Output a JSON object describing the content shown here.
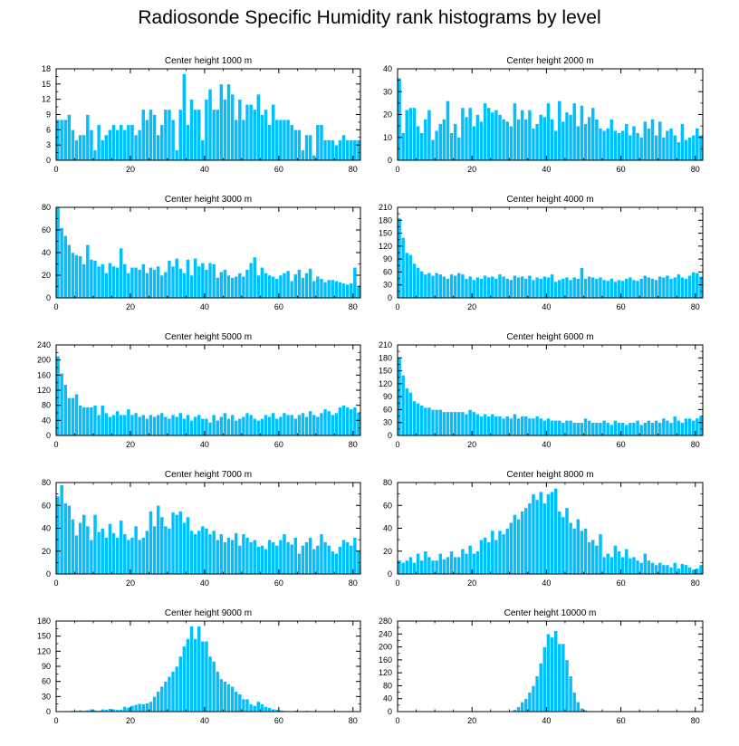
{
  "title": "Radiosonde Specific Humidity rank histograms by level",
  "colors": {
    "bar": "#00BFFF",
    "bar_edge": "#ffffff",
    "axis": "#000000"
  },
  "chart_data": [
    {
      "type": "bar",
      "title": "Center height 1000 m",
      "xlim": [
        0,
        82
      ],
      "ylim": [
        0,
        18
      ],
      "xticks": [
        0,
        20,
        40,
        60,
        80
      ],
      "yticks": [
        0,
        3,
        6,
        9,
        12,
        15,
        18
      ],
      "values": [
        8,
        8,
        8,
        9,
        6,
        4,
        5,
        5,
        9,
        6,
        2,
        7,
        4,
        5,
        6,
        7,
        6,
        7,
        6,
        7,
        7,
        5,
        6,
        10,
        8,
        10,
        9,
        5,
        7,
        10,
        10,
        8,
        2,
        10,
        17,
        7,
        12,
        10,
        10,
        4,
        12,
        14,
        10,
        10,
        15,
        12,
        15,
        13,
        8,
        12,
        8,
        11,
        11,
        10,
        13,
        9,
        10,
        7,
        11,
        8,
        8,
        8,
        8,
        7,
        6,
        6,
        2,
        5,
        5,
        1,
        7,
        7,
        4,
        4,
        4,
        3,
        4,
        5,
        4,
        4,
        4,
        4
      ]
    },
    {
      "type": "bar",
      "title": "Center height 2000 m",
      "xlim": [
        0,
        82
      ],
      "ylim": [
        0,
        40
      ],
      "xticks": [
        0,
        20,
        40,
        60,
        80
      ],
      "yticks": [
        0,
        10,
        20,
        30,
        40
      ],
      "values": [
        36,
        12,
        22,
        23,
        23,
        15,
        12,
        18,
        22,
        9,
        13,
        16,
        18,
        26,
        12,
        16,
        10,
        23,
        19,
        23,
        15,
        20,
        17,
        25,
        23,
        21,
        22,
        20,
        18,
        17,
        15,
        25,
        18,
        22,
        18,
        22,
        14,
        16,
        20,
        19,
        25,
        18,
        13,
        26,
        17,
        21,
        20,
        25,
        15,
        24,
        16,
        19,
        23,
        18,
        14,
        13,
        14,
        18,
        13,
        12,
        13,
        16,
        11,
        15,
        12,
        10,
        17,
        14,
        18,
        11,
        17,
        10,
        13,
        14,
        11,
        8,
        16,
        9,
        10,
        11,
        14,
        11
      ]
    },
    {
      "type": "bar",
      "title": "Center height 3000 m",
      "xlim": [
        0,
        82
      ],
      "ylim": [
        0,
        80
      ],
      "xticks": [
        0,
        20,
        40,
        60,
        80
      ],
      "yticks": [
        0,
        20,
        40,
        60,
        80
      ],
      "values": [
        80,
        62,
        55,
        47,
        40,
        38,
        37,
        30,
        47,
        34,
        33,
        28,
        30,
        22,
        31,
        28,
        27,
        44,
        30,
        22,
        27,
        27,
        25,
        30,
        22,
        27,
        25,
        28,
        20,
        23,
        33,
        28,
        35,
        26,
        22,
        34,
        20,
        35,
        28,
        31,
        25,
        31,
        30,
        18,
        23,
        25,
        20,
        18,
        19,
        22,
        19,
        25,
        31,
        36,
        20,
        27,
        22,
        20,
        19,
        17,
        20,
        22,
        24,
        15,
        21,
        25,
        18,
        22,
        26,
        15,
        19,
        17,
        14,
        16,
        16,
        15,
        14,
        13,
        12,
        13,
        27,
        11
      ]
    },
    {
      "type": "bar",
      "title": "Center height 4000 m",
      "xlim": [
        0,
        82
      ],
      "ylim": [
        0,
        210
      ],
      "xticks": [
        0,
        20,
        40,
        60,
        80
      ],
      "yticks": [
        0,
        30,
        60,
        90,
        120,
        150,
        180,
        210
      ],
      "values": [
        185,
        140,
        105,
        100,
        80,
        70,
        62,
        55,
        58,
        52,
        58,
        55,
        50,
        45,
        55,
        52,
        58,
        55,
        45,
        50,
        42,
        48,
        45,
        52,
        48,
        50,
        45,
        55,
        50,
        45,
        42,
        52,
        48,
        50,
        45,
        52,
        42,
        48,
        45,
        50,
        48,
        55,
        38,
        42,
        45,
        48,
        42,
        48,
        45,
        70,
        45,
        50,
        48,
        45,
        48,
        42,
        40,
        45,
        38,
        42,
        40,
        45,
        48,
        42,
        40,
        45,
        52,
        48,
        45,
        42,
        50,
        48,
        52,
        45,
        48,
        55,
        48,
        45,
        52,
        60,
        58,
        50
      ]
    },
    {
      "type": "bar",
      "title": "Center height 5000 m",
      "xlim": [
        0,
        82
      ],
      "ylim": [
        0,
        240
      ],
      "xticks": [
        0,
        20,
        40,
        60,
        80
      ],
      "yticks": [
        0,
        40,
        80,
        120,
        160,
        200,
        240
      ],
      "values": [
        210,
        165,
        135,
        100,
        100,
        110,
        80,
        75,
        75,
        75,
        80,
        55,
        80,
        60,
        50,
        55,
        65,
        55,
        55,
        70,
        55,
        60,
        50,
        55,
        45,
        55,
        50,
        55,
        60,
        50,
        45,
        55,
        50,
        60,
        45,
        55,
        40,
        50,
        55,
        45,
        45,
        35,
        55,
        40,
        50,
        60,
        45,
        55,
        40,
        45,
        50,
        60,
        55,
        45,
        40,
        45,
        55,
        50,
        60,
        45,
        50,
        60,
        55,
        55,
        45,
        55,
        60,
        50,
        65,
        55,
        50,
        60,
        70,
        65,
        55,
        60,
        75,
        80,
        75,
        70,
        75,
        60
      ]
    },
    {
      "type": "bar",
      "title": "Center height 6000 m",
      "xlim": [
        0,
        82
      ],
      "ylim": [
        0,
        210
      ],
      "xticks": [
        0,
        20,
        40,
        60,
        80
      ],
      "yticks": [
        0,
        30,
        60,
        90,
        120,
        150,
        180,
        210
      ],
      "values": [
        180,
        140,
        110,
        100,
        80,
        75,
        70,
        65,
        65,
        60,
        60,
        60,
        55,
        55,
        55,
        55,
        55,
        55,
        50,
        60,
        55,
        50,
        45,
        50,
        45,
        50,
        45,
        45,
        40,
        45,
        40,
        50,
        40,
        45,
        45,
        40,
        40,
        45,
        40,
        35,
        40,
        35,
        35,
        35,
        30,
        35,
        35,
        30,
        30,
        30,
        40,
        35,
        30,
        30,
        30,
        35,
        30,
        25,
        35,
        30,
        30,
        25,
        30,
        30,
        35,
        25,
        30,
        35,
        30,
        35,
        30,
        40,
        35,
        30,
        45,
        35,
        30,
        40,
        40,
        35,
        40,
        45
      ]
    },
    {
      "type": "bar",
      "title": "Center height 7000 m",
      "xlim": [
        0,
        82
      ],
      "ylim": [
        0,
        80
      ],
      "xticks": [
        0,
        20,
        40,
        60,
        80
      ],
      "yticks": [
        0,
        20,
        40,
        60,
        80
      ],
      "values": [
        68,
        78,
        62,
        60,
        48,
        34,
        45,
        52,
        42,
        30,
        52,
        37,
        40,
        32,
        44,
        36,
        32,
        47,
        35,
        30,
        32,
        42,
        30,
        32,
        38,
        55,
        42,
        60,
        50,
        42,
        40,
        54,
        52,
        55,
        45,
        50,
        38,
        35,
        38,
        42,
        40,
        35,
        38,
        30,
        35,
        28,
        32,
        30,
        36,
        25,
        35,
        32,
        28,
        30,
        24,
        25,
        22,
        30,
        28,
        25,
        30,
        35,
        28,
        26,
        32,
        18,
        25,
        28,
        32,
        22,
        25,
        35,
        28,
        25,
        20,
        18,
        24,
        30,
        28,
        25,
        32,
        20
      ]
    },
    {
      "type": "bar",
      "title": "Center height 8000 m",
      "xlim": [
        0,
        82
      ],
      "ylim": [
        0,
        80
      ],
      "xticks": [
        0,
        20,
        40,
        60,
        80
      ],
      "yticks": [
        0,
        20,
        40,
        60,
        80
      ],
      "values": [
        12,
        10,
        12,
        15,
        10,
        18,
        12,
        20,
        15,
        12,
        12,
        18,
        13,
        15,
        20,
        15,
        15,
        22,
        18,
        25,
        18,
        20,
        30,
        32,
        28,
        38,
        30,
        38,
        35,
        40,
        45,
        52,
        48,
        55,
        58,
        62,
        70,
        65,
        72,
        62,
        70,
        72,
        75,
        55,
        50,
        58,
        45,
        40,
        48,
        38,
        40,
        28,
        30,
        25,
        35,
        15,
        18,
        15,
        25,
        20,
        15,
        22,
        14,
        15,
        12,
        10,
        18,
        12,
        10,
        8,
        10,
        8,
        8,
        6,
        10,
        5,
        9,
        8,
        6,
        4,
        5,
        8
      ]
    },
    {
      "type": "bar",
      "title": "Center height 9000 m",
      "xlim": [
        0,
        82
      ],
      "ylim": [
        0,
        180
      ],
      "xticks": [
        0,
        20,
        40,
        60,
        80
      ],
      "yticks": [
        0,
        30,
        60,
        90,
        120,
        150,
        180
      ],
      "values": [
        0,
        0,
        0,
        0,
        2,
        2,
        3,
        2,
        3,
        5,
        3,
        2,
        5,
        4,
        6,
        5,
        4,
        4,
        10,
        8,
        12,
        14,
        16,
        15,
        17,
        20,
        30,
        40,
        50,
        60,
        70,
        80,
        90,
        110,
        130,
        145,
        170,
        145,
        170,
        140,
        140,
        110,
        100,
        80,
        65,
        60,
        55,
        50,
        40,
        35,
        25,
        25,
        15,
        12,
        20,
        15,
        10,
        8,
        5,
        4,
        3,
        2,
        1,
        1,
        2,
        1,
        1,
        2,
        1,
        1,
        0,
        0,
        1,
        1,
        0,
        0,
        0,
        0,
        0,
        0,
        0,
        0
      ]
    },
    {
      "type": "bar",
      "title": "Center height 10000 m",
      "xlim": [
        0,
        82
      ],
      "ylim": [
        0,
        280
      ],
      "xticks": [
        0,
        20,
        40,
        60,
        80
      ],
      "yticks": [
        0,
        40,
        80,
        120,
        160,
        200,
        240,
        280
      ],
      "values": [
        0,
        0,
        0,
        0,
        0,
        0,
        0,
        0,
        0,
        0,
        0,
        0,
        0,
        0,
        0,
        0,
        0,
        0,
        0,
        0,
        0,
        0,
        0,
        0,
        0,
        0,
        0,
        0,
        0,
        0,
        2,
        6,
        15,
        30,
        40,
        60,
        80,
        110,
        150,
        200,
        240,
        230,
        250,
        210,
        210,
        160,
        110,
        60,
        30,
        10,
        5,
        2,
        1,
        1,
        0,
        0,
        0,
        0,
        0,
        0,
        0,
        0,
        0,
        0,
        0,
        0,
        0,
        0,
        0,
        0,
        0,
        0,
        0,
        0,
        0,
        0,
        0,
        0,
        0,
        0,
        0,
        0
      ]
    }
  ]
}
